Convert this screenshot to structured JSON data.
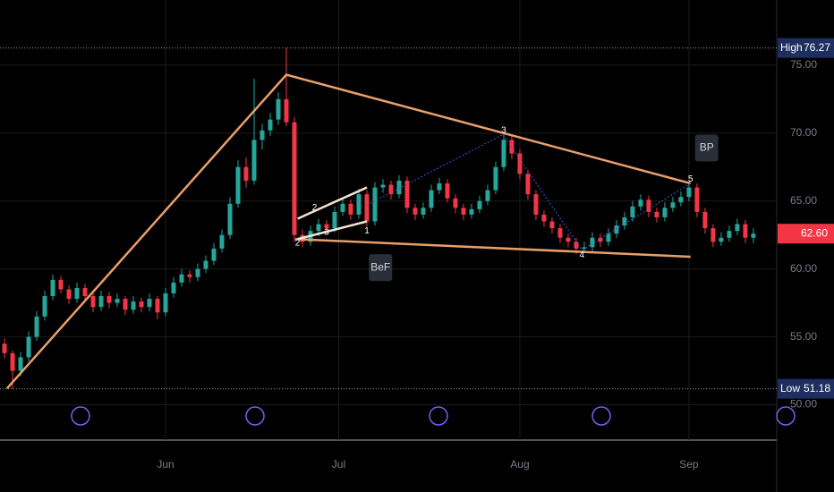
{
  "chart_data": {
    "type": "candlestick",
    "ohlc": [
      [
        54.5,
        54.9,
        53.4,
        53.8
      ],
      [
        53.8,
        54.0,
        51.18,
        52.5
      ],
      [
        52.5,
        53.9,
        52.1,
        53.5
      ],
      [
        53.5,
        55.4,
        53.2,
        55.0
      ],
      [
        55.0,
        56.9,
        54.7,
        56.5
      ],
      [
        56.5,
        58.4,
        56.2,
        58.0
      ],
      [
        58.0,
        59.6,
        57.7,
        59.2
      ],
      [
        59.2,
        59.5,
        58.2,
        58.5
      ],
      [
        58.5,
        58.8,
        57.4,
        57.8
      ],
      [
        57.8,
        59.0,
        57.5,
        58.6
      ],
      [
        58.6,
        58.9,
        57.7,
        58.0
      ],
      [
        58.0,
        58.3,
        56.8,
        57.2
      ],
      [
        57.2,
        58.4,
        56.9,
        58.0
      ],
      [
        58.0,
        58.3,
        57.1,
        57.5
      ],
      [
        57.5,
        58.2,
        57.2,
        57.8
      ],
      [
        57.8,
        58.0,
        56.6,
        57.0
      ],
      [
        57.0,
        58.0,
        56.7,
        57.6
      ],
      [
        57.6,
        57.9,
        56.8,
        57.2
      ],
      [
        57.2,
        58.2,
        56.9,
        57.8
      ],
      [
        57.8,
        58.0,
        56.3,
        56.8
      ],
      [
        56.8,
        58.6,
        56.5,
        58.2
      ],
      [
        58.2,
        59.4,
        57.9,
        59.0
      ],
      [
        59.0,
        60.0,
        58.7,
        59.6
      ],
      [
        59.6,
        59.9,
        59.0,
        59.4
      ],
      [
        59.4,
        60.4,
        59.1,
        60.0
      ],
      [
        60.0,
        61.0,
        59.7,
        60.6
      ],
      [
        60.6,
        61.9,
        60.3,
        61.5
      ],
      [
        61.5,
        62.9,
        61.2,
        62.5
      ],
      [
        62.5,
        65.3,
        62.2,
        64.8
      ],
      [
        64.8,
        68.0,
        64.5,
        67.5
      ],
      [
        67.5,
        68.2,
        66.0,
        66.5
      ],
      [
        66.5,
        74.0,
        66.2,
        69.5
      ],
      [
        69.5,
        70.7,
        68.8,
        70.2
      ],
      [
        70.2,
        71.5,
        69.8,
        71.0
      ],
      [
        71.0,
        73.0,
        70.6,
        72.5
      ],
      [
        72.5,
        76.27,
        70.5,
        70.8
      ],
      [
        70.8,
        71.2,
        62.0,
        62.5
      ],
      [
        62.5,
        62.9,
        61.6,
        62.0
      ],
      [
        62.0,
        63.2,
        61.7,
        62.8
      ],
      [
        62.8,
        63.7,
        62.4,
        63.3
      ],
      [
        63.3,
        63.6,
        62.6,
        63.0
      ],
      [
        63.0,
        64.6,
        62.7,
        64.2
      ],
      [
        64.2,
        65.2,
        63.9,
        64.8
      ],
      [
        64.8,
        65.1,
        63.6,
        64.0
      ],
      [
        64.0,
        65.9,
        63.7,
        65.5
      ],
      [
        65.5,
        65.8,
        63.1,
        63.5
      ],
      [
        63.5,
        66.4,
        63.2,
        66.0
      ],
      [
        66.0,
        66.6,
        65.6,
        66.2
      ],
      [
        66.2,
        66.5,
        65.1,
        65.5
      ],
      [
        65.5,
        66.9,
        65.2,
        66.5
      ],
      [
        66.5,
        66.8,
        64.1,
        64.5
      ],
      [
        64.5,
        64.8,
        63.6,
        64.0
      ],
      [
        64.0,
        64.9,
        63.7,
        64.5
      ],
      [
        64.5,
        66.2,
        64.2,
        65.8
      ],
      [
        65.8,
        66.7,
        65.5,
        66.3
      ],
      [
        66.3,
        66.6,
        64.9,
        65.2
      ],
      [
        65.2,
        65.5,
        64.1,
        64.5
      ],
      [
        64.5,
        64.8,
        63.6,
        64.0
      ],
      [
        64.0,
        64.8,
        63.7,
        64.4
      ],
      [
        64.4,
        65.4,
        64.1,
        65.0
      ],
      [
        65.0,
        66.2,
        64.7,
        65.8
      ],
      [
        65.8,
        67.9,
        65.5,
        67.5
      ],
      [
        67.5,
        70.0,
        67.2,
        69.5
      ],
      [
        69.5,
        69.8,
        68.1,
        68.5
      ],
      [
        68.5,
        68.8,
        66.6,
        67.0
      ],
      [
        67.0,
        67.3,
        65.1,
        65.5
      ],
      [
        65.5,
        65.8,
        63.6,
        64.0
      ],
      [
        64.0,
        64.3,
        63.1,
        63.5
      ],
      [
        63.5,
        63.8,
        62.6,
        63.0
      ],
      [
        63.0,
        63.3,
        61.9,
        62.3
      ],
      [
        62.3,
        62.6,
        61.6,
        62.0
      ],
      [
        62.0,
        62.3,
        61.1,
        61.5
      ],
      [
        61.5,
        62.0,
        61.2,
        61.6
      ],
      [
        61.6,
        62.7,
        61.3,
        62.3
      ],
      [
        62.3,
        62.6,
        61.6,
        62.0
      ],
      [
        62.0,
        63.0,
        61.7,
        62.6
      ],
      [
        62.6,
        63.6,
        62.3,
        63.2
      ],
      [
        63.2,
        64.2,
        62.9,
        63.8
      ],
      [
        63.8,
        65.0,
        63.5,
        64.6
      ],
      [
        64.6,
        65.5,
        64.3,
        65.1
      ],
      [
        65.1,
        65.4,
        63.8,
        64.2
      ],
      [
        64.2,
        64.5,
        63.4,
        63.8
      ],
      [
        63.8,
        64.9,
        63.5,
        64.5
      ],
      [
        64.5,
        65.3,
        64.2,
        64.9
      ],
      [
        64.9,
        65.7,
        64.6,
        65.3
      ],
      [
        65.3,
        66.3,
        65.0,
        66.0
      ],
      [
        66.0,
        66.3,
        63.8,
        64.2
      ],
      [
        64.2,
        64.5,
        62.6,
        63.0
      ],
      [
        63.0,
        63.3,
        61.6,
        62.0
      ],
      [
        62.0,
        62.7,
        61.7,
        62.3
      ],
      [
        62.3,
        63.2,
        62.0,
        62.8
      ],
      [
        62.8,
        63.7,
        62.5,
        63.3
      ],
      [
        63.3,
        63.6,
        61.9,
        62.3
      ],
      [
        62.3,
        63.0,
        61.9,
        62.6
      ]
    ],
    "up_color": "#26a69a",
    "down_color": "#f23645",
    "xlim": [
      -0.56,
      95.9
    ],
    "xticks": [
      {
        "value": 20,
        "label": "Jun"
      },
      {
        "value": 41.5,
        "label": "Jul"
      },
      {
        "value": 64,
        "label": "Aug"
      },
      {
        "value": 85,
        "label": "Sep"
      }
    ],
    "ylim": [
      47.4,
      79.8
    ],
    "yticks": [
      {
        "value": 50,
        "label": "50.00"
      },
      {
        "value": 55,
        "label": "55.00"
      },
      {
        "value": 60,
        "label": "60.00"
      },
      {
        "value": 65,
        "label": "65.00"
      },
      {
        "value": 70,
        "label": "70.00"
      },
      {
        "value": 75,
        "label": "75.00"
      }
    ],
    "grid": true,
    "high": {
      "label": "High",
      "value": 76.27
    },
    "low": {
      "label": "Low",
      "value": 51.18
    },
    "last": {
      "value": 62.6,
      "label": "62.60"
    },
    "drawings": [
      {
        "color": "#e8a06a",
        "dash": false,
        "points": [
          [
            0.3,
            51.2
          ],
          [
            35,
            74.3
          ],
          [
            85.2,
            66.3
          ]
        ]
      },
      {
        "color": "#e8a06a",
        "dash": false,
        "points": [
          [
            36.1,
            62.2
          ],
          [
            85.2,
            60.9
          ]
        ]
      },
      {
        "color": "#f3e3d3",
        "dash": false,
        "points": [
          [
            36.4,
            63.7
          ],
          [
            45,
            66.0
          ]
        ]
      },
      {
        "color": "#f3e3d3",
        "dash": false,
        "points": [
          [
            36.4,
            62.2
          ],
          [
            45,
            63.5
          ]
        ]
      },
      {
        "color": "#3d5bd9",
        "dash": true,
        "points": [
          [
            45,
            64.7
          ],
          [
            61.9,
            69.9
          ],
          [
            71.7,
            61.4
          ],
          [
            85.2,
            66.3
          ]
        ]
      }
    ],
    "pattern_labels": [
      {
        "text": "2",
        "x": 36.4,
        "y": 61.9
      },
      {
        "text": "2",
        "x": 38.5,
        "y": 64.5
      },
      {
        "text": "3",
        "x": 40,
        "y": 62.7
      },
      {
        "text": "1",
        "x": 45,
        "y": 62.8
      },
      {
        "text": "3",
        "x": 62,
        "y": 70.2
      },
      {
        "text": "4",
        "x": 71.7,
        "y": 61.0
      },
      {
        "text": "5",
        "x": 85.2,
        "y": 66.6
      }
    ],
    "callouts": [
      {
        "text": "BeF",
        "x": 46.7,
        "y": 60.1
      },
      {
        "text": "BP",
        "x": 87.2,
        "y": 68.9
      }
    ]
  }
}
